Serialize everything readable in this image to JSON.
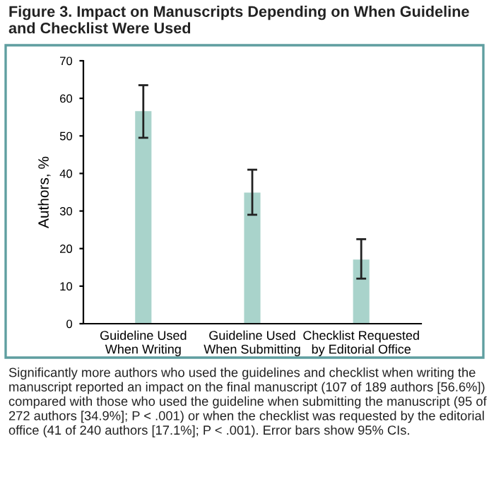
{
  "chart_data": {
    "type": "bar",
    "title": "Figure 3. Impact on Manuscripts Depending on When Guideline and Checklist Were Used",
    "ylabel": "Authors, %",
    "categories": [
      "Guideline Used\nWhen Writing",
      "Guideline Used\nWhen Submitting",
      "Checklist Requested\nby Editorial Office"
    ],
    "values": [
      56.6,
      34.9,
      17.1
    ],
    "errors": [
      [
        49.5,
        63.5
      ],
      [
        29,
        41
      ],
      [
        12,
        22.5
      ]
    ],
    "color": "#a9d3cb",
    "ylim": [
      0,
      70
    ],
    "yticks": [
      0,
      10,
      20,
      30,
      40,
      50,
      60,
      70
    ],
    "annotations": [
      "Significantly more authors who used the guidelines and checklist when writing the manuscript reported an impact on the final manuscript (107 of 189 authors [56.6%]) compared with those who used the guideline when submitting the manuscript (95 of 272 authors [34.9%]; P < .001) or when the checklist was requested by the editorial office (41 of 240 authors [17.1%]; P < .001). Error bars show 95% CIs."
    ]
  }
}
